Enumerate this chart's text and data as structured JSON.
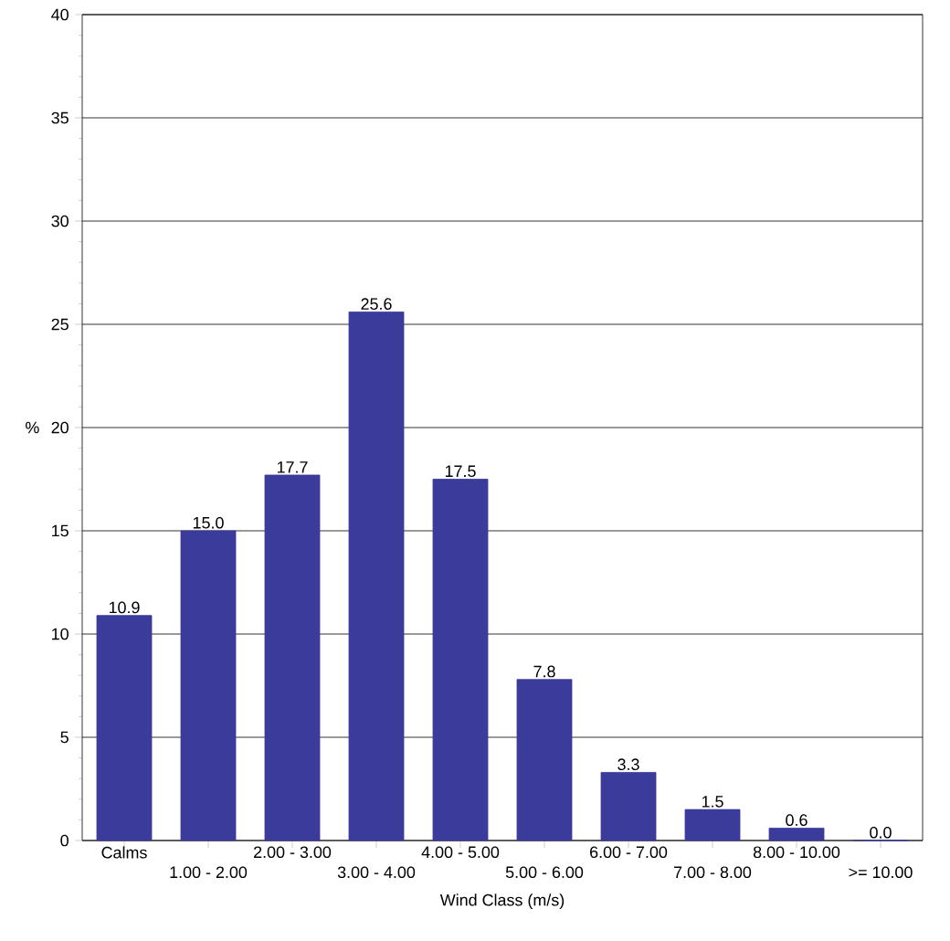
{
  "chart_data": {
    "type": "bar",
    "xlabel": "Wind Class (m/s)",
    "ylabel": "%",
    "categories": [
      "Calms",
      "1.00 - 2.00",
      "2.00 - 3.00",
      "3.00 - 4.00",
      "4.00 - 5.00",
      "5.00 - 6.00",
      "6.00 - 7.00",
      "7.00 - 8.00",
      "8.00 - 10.00",
      ">= 10.00"
    ],
    "values": [
      10.9,
      15.0,
      17.7,
      25.6,
      17.5,
      7.8,
      3.3,
      1.5,
      0.6,
      0.0
    ],
    "color": "#3b3b9c",
    "ylim": [
      0,
      40
    ],
    "yticks": [
      0,
      5,
      10,
      15,
      20,
      25,
      30,
      35,
      40
    ],
    "value_labels": [
      "10.9",
      "15.0",
      "17.7",
      "25.6",
      "17.5",
      "7.8",
      "3.3",
      "1.5",
      "0.6",
      "0.0"
    ],
    "grid": "y"
  }
}
